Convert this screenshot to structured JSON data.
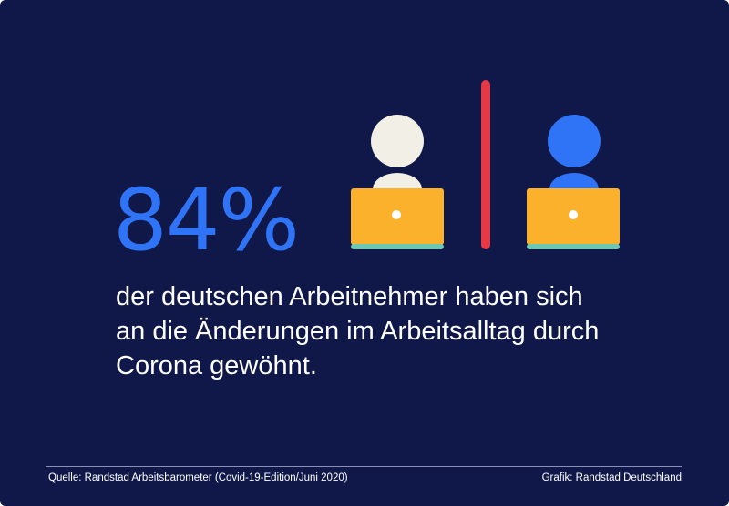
{
  "headline": {
    "stat": "84%",
    "lines": [
      "der deutschen Arbeitnehmer haben sich",
      "an die Änderungen im Arbeitsalltag durch",
      "Corona gewöhnt."
    ]
  },
  "footer": {
    "source": "Quelle: Randstad Arbeitsbarometer (Covid-19-Edition/Juni 2020)",
    "credit": "Grafik: Randstad Deutschland"
  },
  "colors": {
    "background": "#0f1848",
    "accent_blue": "#2f74f6",
    "divider_red": "#e63946",
    "laptop_yellow": "#fbb12b",
    "laptop_base": "#6cc7b4",
    "person_light": "#f1efe6"
  },
  "illustration": {
    "left_person_icon": "person-at-laptop-icon",
    "divider_icon": "vertical-divider",
    "right_person_icon": "person-at-laptop-icon"
  }
}
